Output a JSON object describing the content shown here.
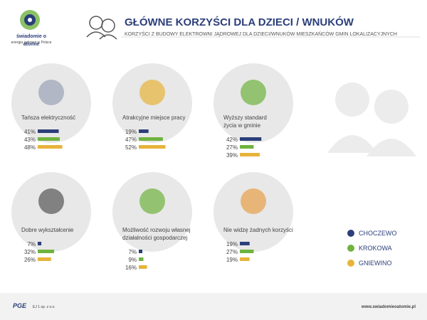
{
  "branding": {
    "logo_name": "świadomie o atomie",
    "logo_tagline": "energia jądrowa w Polsce",
    "footer_brand": "PGE",
    "footer_company": "EJ 1 sp. z o.o.",
    "footer_url": "www.swiadomieoatomie.pl"
  },
  "chart_data": {
    "type": "bar",
    "title": "GŁÓWNE KORZYŚCI DLA DZIECI / WNUKÓW",
    "subtitle": "KORZYŚCI Z BUDOWY ELEKTROWNI JĄDROWEJ DLA DZIECI/WNUKÓW MIESZKAŃCÓW GMIN LOKALIZACYJNYCH",
    "categories": [
      "Tańsza elektryczność",
      "Atrakcyjne miejsce pracy",
      "Wyższy standard\nżycia w gminie",
      "Dobre wykształcenie",
      "Możliwość rozwoju własnej\ndziałalności gospodarczej",
      "Nie widzę żadnych korzyści"
    ],
    "series": [
      {
        "name": "CHOCZEWO",
        "color": "#2b3f7a",
        "values": [
          41,
          19,
          42,
          7,
          7,
          19
        ],
        "value_labels": [
          "41%",
          "19%",
          "42%",
          "7%",
          "7%",
          "19%"
        ]
      },
      {
        "name": "KROKOWA",
        "color": "#6fb33f",
        "values": [
          43,
          47,
          27,
          32,
          9,
          27
        ],
        "value_labels": [
          "43%",
          "47%",
          "27%",
          "32%",
          "9%",
          "27%"
        ]
      },
      {
        "name": "GNIEWINO",
        "color": "#e8b33a",
        "values": [
          48,
          52,
          39,
          26,
          16,
          19
        ],
        "value_labels": [
          "48%",
          "52%",
          "39%",
          "26%",
          "16%",
          "19%"
        ]
      }
    ]
  }
}
